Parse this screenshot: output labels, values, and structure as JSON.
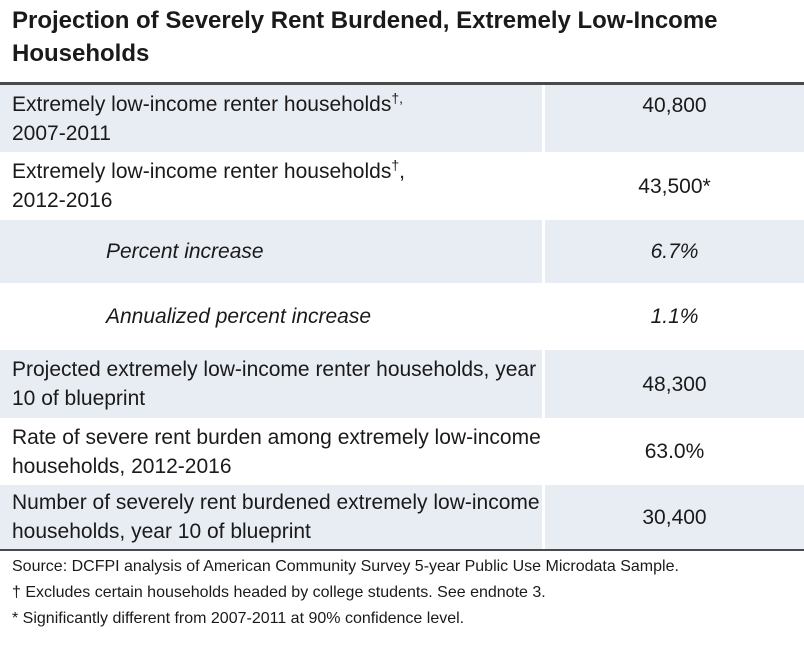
{
  "title": "Projection of Severely Rent Burdened, Extremely Low-Income Households",
  "rows": [
    {
      "label_main": "Extremely low-income renter households",
      "label_mark": "†,",
      "label_rest": "2007-2011",
      "value": "40,800",
      "value_mark": ""
    },
    {
      "label_main": "Extremely low-income renter households",
      "label_mark": "†",
      "label_rest": ", 2012-2016",
      "value": "43,500",
      "value_mark": "*"
    },
    {
      "label": "Percent increase",
      "value": "6.7%"
    },
    {
      "label": "Annualized percent increase",
      "value": "1.1%"
    },
    {
      "label": "Projected extremely low-income renter households, year 10 of blueprint",
      "value": "48,300"
    },
    {
      "label": "Rate of severe rent burden among extremely low-income households, 2012-2016",
      "value": "63.0%"
    },
    {
      "label": "Number of severely rent burdened extremely low-income households, year 10 of blueprint",
      "value": "30,400"
    }
  ],
  "notes": {
    "source": "Source: DCFPI analysis of American Community Survey 5-year Public Use Microdata Sample.",
    "dagger": "† Excludes certain households headed by college students. See endnote 3.",
    "asterisk": "* Significantly different from 2007-2011 at 90% confidence level."
  }
}
